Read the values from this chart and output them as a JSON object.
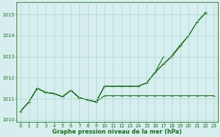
{
  "x": [
    0,
    1,
    2,
    3,
    4,
    5,
    6,
    7,
    8,
    9,
    10,
    11,
    12,
    13,
    14,
    15,
    16,
    17,
    18,
    19,
    20,
    21,
    22,
    23
  ],
  "lines": [
    [
      1010.4,
      1010.85,
      1011.5,
      1011.3,
      1011.25,
      1011.1,
      1011.4,
      1011.05,
      1010.95,
      1010.85,
      1011.15,
      1011.15,
      1011.15,
      1011.15,
      1011.15,
      1011.15,
      1011.15,
      1011.15,
      1011.15,
      1011.15,
      1011.15,
      1011.15,
      1011.15,
      1011.15
    ],
    [
      1010.4,
      1010.85,
      1011.5,
      1011.3,
      1011.25,
      1011.1,
      1011.4,
      1011.05,
      1010.95,
      1010.85,
      1011.6,
      1011.6,
      1011.6,
      1011.6,
      1011.6,
      1011.75,
      1012.25,
      1012.65,
      1013.0,
      1013.5,
      1014.0,
      1014.65,
      1015.05,
      null
    ],
    [
      1010.4,
      1010.85,
      1011.5,
      1011.3,
      1011.25,
      1011.1,
      1011.4,
      1011.05,
      1010.95,
      1010.85,
      1011.6,
      1011.6,
      1011.6,
      1011.6,
      1011.6,
      1011.75,
      1012.25,
      1013.0,
      null,
      null,
      null,
      null,
      null,
      null
    ],
    [
      1010.4,
      1010.85,
      1011.5,
      1011.3,
      1011.25,
      1011.1,
      1011.4,
      1011.05,
      1010.95,
      1010.85,
      1011.6,
      1011.6,
      1011.6,
      1011.6,
      1011.6,
      1011.75,
      1012.25,
      1012.65,
      1013.05,
      1013.55,
      1014.0,
      1014.65,
      1015.1,
      null
    ]
  ],
  "line_color": "#1a6b1a",
  "bg_color": "#d6eeee",
  "grid_color": "#aad4d4",
  "ylabel_ticks": [
    1010,
    1011,
    1012,
    1013,
    1014,
    1015
  ],
  "xlabel": "Graphe pression niveau de la mer (hPa)",
  "ylim": [
    1009.9,
    1015.6
  ],
  "xlim": [
    -0.5,
    23.5
  ],
  "tick_fontsize": 5,
  "xlabel_fontsize": 6
}
